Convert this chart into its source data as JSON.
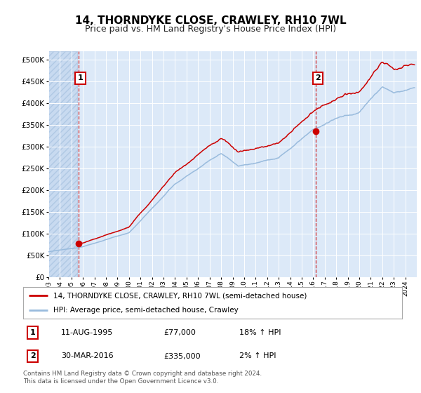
{
  "title": "14, THORNDYKE CLOSE, CRAWLEY, RH10 7WL",
  "subtitle": "Price paid vs. HM Land Registry's House Price Index (HPI)",
  "ylim": [
    0,
    520000
  ],
  "yticks": [
    0,
    50000,
    100000,
    150000,
    200000,
    250000,
    300000,
    350000,
    400000,
    450000,
    500000
  ],
  "ytick_labels": [
    "£0",
    "£50K",
    "£100K",
    "£150K",
    "£200K",
    "£250K",
    "£300K",
    "£350K",
    "£400K",
    "£450K",
    "£500K"
  ],
  "bg_color": "#dce9f8",
  "hatch_color": "#c0d4ec",
  "grid_color": "#ffffff",
  "line_color_property": "#cc0000",
  "line_color_hpi": "#99bbdd",
  "marker_color": "#cc0000",
  "sale1_year": 1995.62,
  "sale1_price": 77000,
  "sale2_year": 2016.25,
  "sale2_price": 335000,
  "legend_label_property": "14, THORNDYKE CLOSE, CRAWLEY, RH10 7WL (semi-detached house)",
  "legend_label_hpi": "HPI: Average price, semi-detached house, Crawley",
  "table_row1": [
    "1",
    "11-AUG-1995",
    "£77,000",
    "18% ↑ HPI"
  ],
  "table_row2": [
    "2",
    "30-MAR-2016",
    "£335,000",
    "2% ↑ HPI"
  ],
  "footnote": "Contains HM Land Registry data © Crown copyright and database right 2024.\nThis data is licensed under the Open Government Licence v3.0.",
  "title_fontsize": 11,
  "subtitle_fontsize": 9,
  "xmin": 1993,
  "xmax": 2025
}
